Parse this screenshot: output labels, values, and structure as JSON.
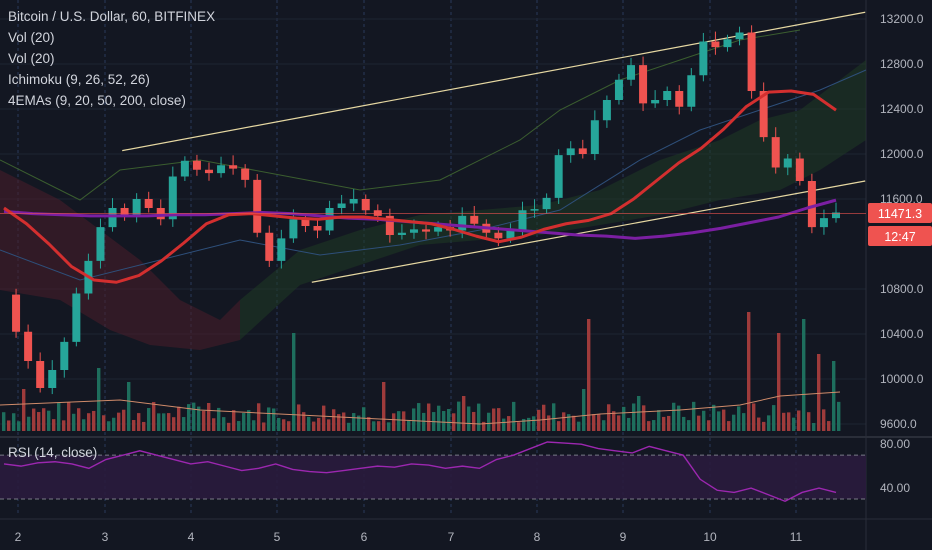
{
  "legend": {
    "title": "Bitcoin / U.S. Dollar, 60, BITFINEX",
    "vol1": "Vol (20)",
    "vol2": "Vol (20)",
    "ichimoku": "Ichimoku (9, 26, 52, 26)",
    "emas": "4EMAs (9, 20, 50, 200, close)",
    "rsi": "RSI (14, close)"
  },
  "price_badge": "11471.3",
  "countdown_badge": "12:47",
  "colors": {
    "background": "#131722",
    "up": "#26a69a",
    "down": "#ef5350",
    "ema50": "#d32f2f",
    "ema200": "#7b1fa2",
    "channel": "#e6d8a2",
    "rsi_line": "#9c27b0",
    "price_badge": "#ef5350"
  },
  "chart_data": [
    {
      "type": "candlestick",
      "title": "Bitcoin / U.S. Dollar, 60, BITFINEX",
      "x_tick_labels": [
        "2",
        "3",
        "4",
        "5",
        "6",
        "7",
        "8",
        "9",
        "10",
        "11"
      ],
      "y_tick_labels": [
        "13200.0",
        "12800.0",
        "12400.0",
        "12000.0",
        "11600.0",
        "10800.0",
        "10400.0",
        "10000.0",
        "9600.0"
      ],
      "y_ticks": [
        13200,
        12800,
        12400,
        12000,
        11600,
        10800,
        10400,
        10000,
        9600
      ],
      "ylim": [
        9540,
        13300
      ],
      "last_price": 11471.3,
      "indicators": [
        "Vol (20)",
        "Vol (20)",
        "Ichimoku (9, 26, 52, 26)",
        "4EMAs (9, 20, 50, 200, close)"
      ],
      "series": [
        {
          "name": "EMA 50",
          "values": [
            11520,
            11380,
            11200,
            11000,
            10880,
            10860,
            10920,
            11050,
            11210,
            11380,
            11460,
            11470,
            11450,
            11430,
            11420,
            11440,
            11440,
            11420,
            11400,
            11380,
            11330,
            11270,
            11220,
            11260,
            11330,
            11380,
            11410,
            11470,
            11600,
            11760,
            11920,
            12050,
            12220,
            12420,
            12550,
            12560,
            12530,
            12390
          ]
        },
        {
          "name": "EMA 200",
          "values": [
            11490,
            11470,
            11460,
            11450,
            11450,
            11450,
            11460,
            11460,
            11470,
            11480,
            11470,
            11450,
            11430,
            11420,
            11400,
            11380,
            11360,
            11340,
            11320,
            11300,
            11280,
            11270,
            11250,
            11270,
            11300,
            11340,
            11390,
            11440,
            11520,
            11590,
            11650,
            11700
          ]
        }
      ],
      "channel": {
        "upper": [
          [
            3.2,
            12030
          ],
          [
            11.8,
            13260
          ]
        ],
        "lower": [
          [
            5.4,
            10860
          ],
          [
            11.8,
            11760
          ]
        ]
      },
      "candle_closes": [
        10750,
        10420,
        10160,
        9920,
        10080,
        10330,
        10760,
        11050,
        11350,
        11520,
        11460,
        11600,
        11520,
        11420,
        11800,
        11940,
        11860,
        11830,
        11900,
        11870,
        11770,
        11300,
        11050,
        11250,
        11420,
        11360,
        11320,
        11520,
        11560,
        11600,
        11500,
        11450,
        11280,
        11300,
        11330,
        11310,
        11350,
        11320,
        11450,
        11380,
        11300,
        11250,
        11320,
        11500,
        11510,
        11610,
        11990,
        12050,
        12000,
        12300,
        12480,
        12660,
        12790,
        12450,
        12480,
        12560,
        12420,
        12700,
        13000,
        12950,
        13020,
        13080,
        12560,
        12150,
        11880,
        11960,
        11760,
        11350,
        11430,
        11480
      ]
    },
    {
      "type": "bar",
      "title": "Vol (20)",
      "note": "volume histogram, unitless scale"
    },
    {
      "type": "line",
      "title": "RSI (14, close)",
      "y_tick_labels": [
        "80.00",
        "40.00"
      ],
      "y_ticks": [
        80,
        40
      ],
      "guides": [
        70,
        30
      ],
      "ylim": [
        20,
        82
      ],
      "series": [
        {
          "name": "RSI",
          "values": [
            62,
            60,
            63,
            64,
            62,
            58,
            66,
            70,
            74,
            70,
            66,
            62,
            64,
            60,
            56,
            58,
            62,
            57,
            55,
            54,
            56,
            58,
            60,
            59,
            62,
            61,
            58,
            60,
            58,
            66,
            70,
            76,
            82,
            81,
            80,
            76,
            74,
            72,
            78,
            74,
            70,
            48,
            38,
            36,
            40,
            34,
            28,
            36,
            40,
            36
          ]
        }
      ]
    }
  ]
}
